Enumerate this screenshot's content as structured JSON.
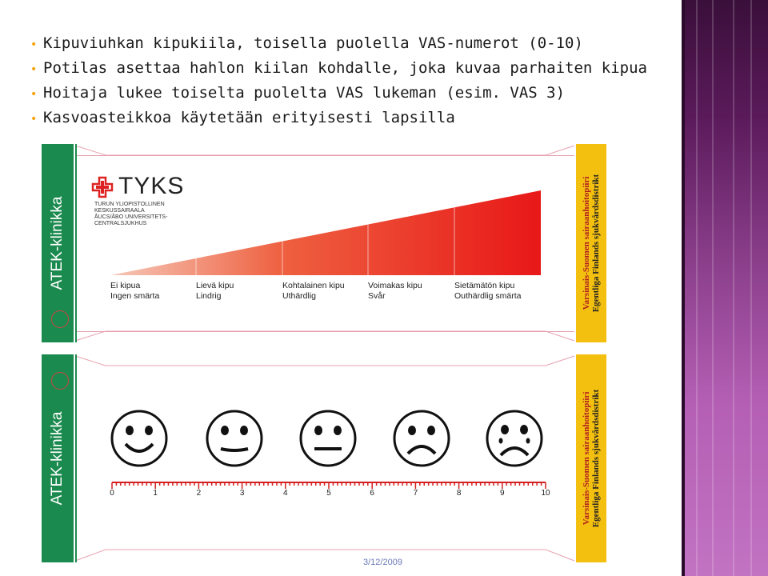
{
  "bullets": [
    "Kipuviuhkan kipukiila, toisella puolella VAS-numerot (0-10)",
    "Potilas asettaa hahlon kiilan kohdalle, joka kuvaa parhaiten kipua",
    "Hoitaja lukee toiselta puolelta VAS lukeman (esim. VAS 3)",
    "Kasvoasteikkoa käytetään erityisesti lapsilla"
  ],
  "bullet_color": "#f2a200",
  "card1": {
    "side_label": "ATEK-klinikka",
    "logo_name": "TYKS",
    "logo_sub": [
      "TURUN YLIOPISTOLLINEN",
      "KESKUSSAIRAALA",
      "ÅUCS/ÅBO UNIVERSITETS-",
      "CENTRALSJUKHUS"
    ],
    "district_line1": "Varsinais-Suomen sairaanhoitopiiri",
    "district_line2": "Egentliga Finlands sjukvårdsdistrikt",
    "scale": [
      {
        "fi": "Ei kipua",
        "sv": "Ingen smärta"
      },
      {
        "fi": "Lievä kipu",
        "sv": "Lindrig"
      },
      {
        "fi": "Kohtalainen kipu",
        "sv": "Uthärdlig"
      },
      {
        "fi": "Voimakas kipu",
        "sv": "Svår"
      },
      {
        "fi": "Sietämätön kipu",
        "sv": "Outhärdlig smärta"
      }
    ]
  },
  "card2": {
    "side_label": "ATEK-klinikka",
    "district_line1": "Varsinais-Suomen sairaanhoitopiiri",
    "district_line2": "Egentliga Finlands sjukvårdsdistrikt",
    "faces": [
      "happy-face-icon",
      "slight-smile-face-icon",
      "neutral-face-icon",
      "sad-face-icon",
      "crying-face-icon"
    ],
    "ticks": [
      "0",
      "1",
      "2",
      "3",
      "4",
      "5",
      "6",
      "7",
      "8",
      "9",
      "10"
    ]
  },
  "colors": {
    "green": "#1a8a4e",
    "yellow": "#f4c010",
    "wedge": "#e82020"
  },
  "footer_date": "3/12/2009"
}
